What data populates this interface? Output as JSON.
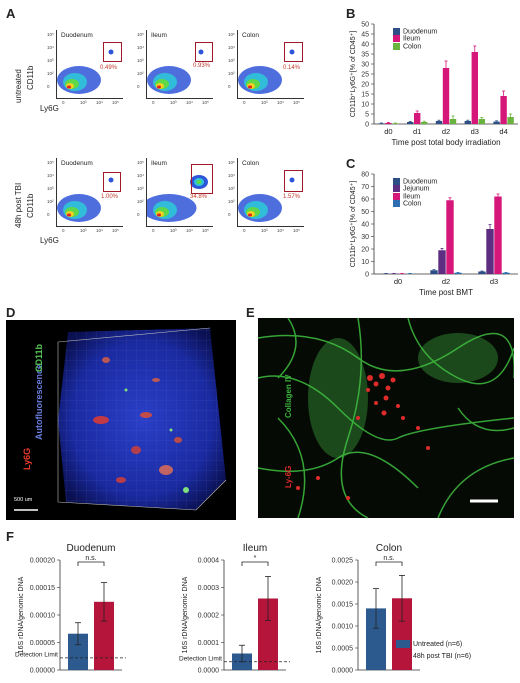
{
  "panels": {
    "A": "A",
    "B": "B",
    "C": "C",
    "D": "D",
    "E": "E",
    "F": "F"
  },
  "panelA": {
    "rows": [
      "untreated",
      "48h post TBI"
    ],
    "ylabel": "CD11b",
    "xlabel": "Ly6G",
    "titles": [
      "Duodenum",
      "Ileum",
      "Colon"
    ],
    "pcts": [
      [
        "0.49%",
        "0.93%",
        "0.14%"
      ],
      [
        "1.00%",
        "34.8%",
        "1.57%"
      ]
    ],
    "yticks": [
      "10⁵",
      "10⁴",
      "10³",
      "10²",
      "0"
    ],
    "xticks": [
      "0",
      "10³",
      "10⁴",
      "10⁵"
    ]
  },
  "panelB": {
    "ylabel": "CD11b⁺Ly6G⁺[% of CD45⁺]",
    "xlabel": "Time post total body irradiation",
    "legend": [
      "Duodenum",
      "Ileum",
      "Colon"
    ],
    "colors": {
      "Duodenum": "#2e4f86",
      "Ileum": "#d6177a",
      "Colon": "#6bb33f"
    }
  },
  "panelC": {
    "ylabel": "CD11b⁺Ly6G⁺[% of CD45⁺]",
    "xlabel": "Time post BMT",
    "legend": [
      "Duodenum",
      "Jejunum",
      "Ileum",
      "Colon"
    ],
    "colors": {
      "Duodenum": "#2e4f86",
      "Jejunum": "#5c2d80",
      "Ileum": "#d6177a",
      "Colon": "#2d6fb0"
    }
  },
  "panelD": {
    "labels": [
      "CD11b",
      "Autofluorescence",
      "Ly6G"
    ],
    "scale": "500 um"
  },
  "panelE": {
    "labels": [
      "Collagen IV",
      "Ly-6G"
    ]
  },
  "panelF": {
    "ylabel": "16S rDNA/genomic DNA",
    "detection": "Detection Limit",
    "legend": [
      "Untreated (n=6)",
      "48h post TBI (n=6)"
    ],
    "colors": {
      "Untreated": "#2d5a8e",
      "TBI": "#b5153a"
    }
  },
  "chart_data": [
    {
      "type": "bar",
      "panel": "B",
      "ylabel": "CD11b⁺Ly6G⁺[% of CD45⁺]",
      "xlabel": "Time post total body irradiation",
      "categories": [
        "d0",
        "d1",
        "d2",
        "d3",
        "d4"
      ],
      "ylim": [
        0,
        50
      ],
      "yticks": [
        0,
        5,
        10,
        15,
        20,
        25,
        30,
        35,
        40,
        45,
        50
      ],
      "series": [
        {
          "name": "Duodenum",
          "values": [
            0.3,
            1.0,
            1.5,
            1.5,
            1.2
          ],
          "errors": [
            0.2,
            0.3,
            0.4,
            0.4,
            0.4
          ]
        },
        {
          "name": "Ileum",
          "values": [
            0.5,
            5.5,
            28,
            36,
            14
          ],
          "errors": [
            0.3,
            1.0,
            3.5,
            3.0,
            2.5
          ]
        },
        {
          "name": "Colon",
          "values": [
            0.3,
            1.0,
            2.5,
            2.5,
            3.5
          ],
          "errors": [
            0.2,
            0.4,
            1.5,
            0.8,
            1.5
          ]
        }
      ]
    },
    {
      "type": "bar",
      "panel": "C",
      "ylabel": "CD11b⁺Ly6G⁺[% of CD45⁺]",
      "xlabel": "Time post BMT",
      "categories": [
        "d0",
        "d2",
        "d3"
      ],
      "ylim": [
        0,
        80
      ],
      "yticks": [
        0,
        10,
        20,
        30,
        40,
        50,
        60,
        70,
        80
      ],
      "series": [
        {
          "name": "Duodenum",
          "values": [
            0.3,
            3,
            2
          ],
          "errors": [
            0.2,
            0.5,
            0.4
          ]
        },
        {
          "name": "Jejunum",
          "values": [
            0.3,
            19,
            36
          ],
          "errors": [
            0.2,
            1.5,
            3.5
          ]
        },
        {
          "name": "Ileum",
          "values": [
            0.3,
            59,
            62
          ],
          "errors": [
            0.2,
            2,
            2
          ]
        },
        {
          "name": "Colon",
          "values": [
            0.3,
            1,
            1
          ],
          "errors": [
            0.2,
            0.3,
            0.3
          ]
        }
      ]
    },
    {
      "type": "bar",
      "panel": "F",
      "title": "Duodenum",
      "ylabel": "16S rDNA/genomic DNA",
      "categories": [
        "Untreated (n=6)",
        "48h post TBI (n=6)"
      ],
      "values": [
        6.6e-05,
        0.000124
      ],
      "errors": [
        2e-05,
        3.5e-05
      ],
      "ylim": [
        0,
        0.0002
      ],
      "yticks": [
        "0.00000",
        "0.00005",
        "0.00010",
        "0.00015",
        "0.00020"
      ],
      "detection_limit": 2.2e-05,
      "significance": "n.s."
    },
    {
      "type": "bar",
      "panel": "F",
      "title": "Ileum",
      "ylabel": "16S rDNA/genomic DNA",
      "categories": [
        "Untreated (n=6)",
        "48h post TBI (n=6)"
      ],
      "values": [
        6e-05,
        0.00026
      ],
      "errors": [
        3e-05,
        8e-05
      ],
      "ylim": [
        0,
        0.0004
      ],
      "yticks": [
        "0.0000",
        "0.0001",
        "0.0002",
        "0.0003",
        "0.0004"
      ],
      "detection_limit": 3e-05,
      "significance": "*"
    },
    {
      "type": "bar",
      "panel": "F",
      "title": "Colon",
      "ylabel": "16S rDNA/genomic DNA",
      "categories": [
        "Untreated (n=6)",
        "48h post TBI (n=6)"
      ],
      "values": [
        0.0014,
        0.00163
      ],
      "errors": [
        0.00045,
        0.00052
      ],
      "ylim": [
        0,
        0.0025
      ],
      "yticks": [
        "0.0000",
        "0.0005",
        "0.0010",
        "0.0015",
        "0.0020",
        "0.0025"
      ],
      "significance": "n.s."
    }
  ]
}
